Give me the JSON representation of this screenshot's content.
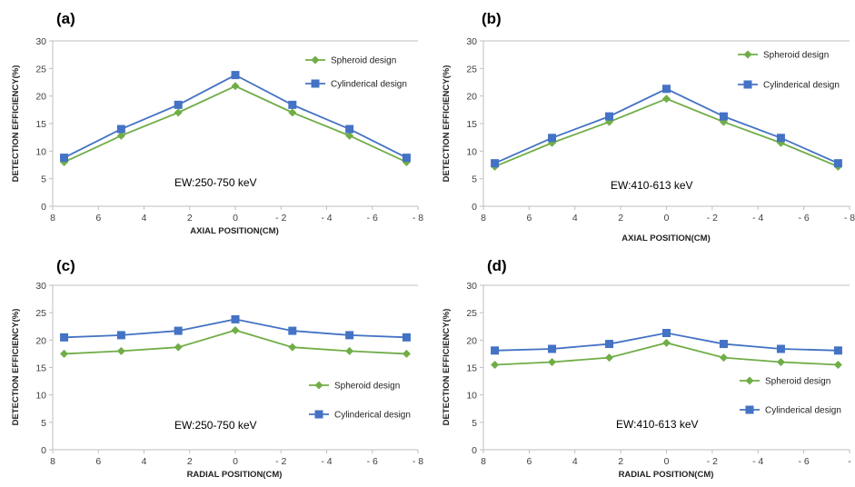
{
  "chart_data": [
    {
      "panel": "(a)",
      "type": "line",
      "xlabel": "AXIAL POSITION(CM)",
      "ylabel": "DETECTION EFFICIENCY(%)",
      "annotation": "EW:250-750 keV",
      "xlim": [
        8,
        -8
      ],
      "ylim": [
        0,
        30
      ],
      "x_ticks": [
        "8",
        "6",
        "4",
        "2",
        "0",
        "- 2",
        "- 4",
        "- 6",
        "- 8"
      ],
      "y_ticks": [
        "0",
        "5",
        "10",
        "15",
        "20",
        "25",
        "30"
      ],
      "legend_position": "top-right",
      "x": [
        7.5,
        5,
        2.5,
        0,
        -2.5,
        -5,
        -7.5
      ],
      "series": [
        {
          "name": "Spheroid design",
          "color": "#70ad47",
          "marker": "diamond",
          "values": [
            8.0,
            12.8,
            17.0,
            21.8,
            17.0,
            12.8,
            8.0
          ]
        },
        {
          "name": "Cylinderical design",
          "color": "#4472c4",
          "marker": "square",
          "values": [
            8.8,
            14.0,
            18.4,
            23.8,
            18.4,
            14.0,
            8.8
          ]
        }
      ]
    },
    {
      "panel": "(b)",
      "type": "line",
      "xlabel": "AXIAL POSITION(CM)",
      "ylabel": "DETECTION EFFICIENCY(%)",
      "annotation": "EW:410-613 keV",
      "xlim": [
        8,
        -8
      ],
      "ylim": [
        0,
        30
      ],
      "x_ticks": [
        "8",
        "6",
        "4",
        "2",
        "0",
        "- 2",
        "- 4",
        "- 6",
        "- 8"
      ],
      "y_ticks": [
        "0",
        "5",
        "10",
        "15",
        "20",
        "25",
        "30"
      ],
      "legend_position": "top-right",
      "x": [
        7.5,
        5,
        2.5,
        0,
        -2.5,
        -5,
        -7.5
      ],
      "series": [
        {
          "name": "Spheroid design",
          "color": "#70ad47",
          "marker": "diamond",
          "values": [
            7.2,
            11.5,
            15.3,
            19.5,
            15.3,
            11.5,
            7.2
          ]
        },
        {
          "name": "Cylinderical design",
          "color": "#4472c4",
          "marker": "square",
          "values": [
            7.8,
            12.4,
            16.3,
            21.3,
            16.3,
            12.4,
            7.8
          ]
        }
      ]
    },
    {
      "panel": "(c)",
      "type": "line",
      "xlabel": "RADIAL POSITION(CM)",
      "ylabel": "DETECTION EFFICIENCY(%)",
      "annotation": "EW:250-750 keV",
      "xlim": [
        8,
        -8
      ],
      "ylim": [
        0,
        30
      ],
      "x_ticks": [
        "8",
        "6",
        "4",
        "2",
        "0",
        "- 2",
        "- 4",
        "- 6",
        "- 8"
      ],
      "y_ticks": [
        "0",
        "5",
        "10",
        "15",
        "20",
        "25",
        "30"
      ],
      "legend_position": "center-right",
      "x": [
        7.5,
        5,
        2.5,
        0,
        -2.5,
        -5,
        -7.5
      ],
      "series": [
        {
          "name": "Spheroid design",
          "color": "#70ad47",
          "marker": "diamond",
          "values": [
            17.5,
            18.0,
            18.7,
            21.8,
            18.7,
            18.0,
            17.5
          ]
        },
        {
          "name": "Cylinderical design",
          "color": "#4472c4",
          "marker": "square",
          "values": [
            20.5,
            20.9,
            21.7,
            23.8,
            21.7,
            20.9,
            20.5
          ]
        }
      ]
    },
    {
      "panel": "(d)",
      "type": "line",
      "xlabel": "RADIAL POSITION(CM)",
      "ylabel": "DETECTION EFFICIENCY(%)",
      "annotation": "EW:410-613 keV",
      "xlim": [
        8,
        -8
      ],
      "ylim": [
        0,
        30
      ],
      "x_ticks": [
        "8",
        "6",
        "4",
        "2",
        "0",
        "- 2",
        "- 4",
        "- 6",
        "-"
      ],
      "y_ticks": [
        "0",
        "5",
        "10",
        "15",
        "20",
        "25",
        "30"
      ],
      "legend_position": "center-right",
      "x": [
        7.5,
        5,
        2.5,
        0,
        -2.5,
        -5,
        -7.5
      ],
      "series": [
        {
          "name": "Spheroid design",
          "color": "#70ad47",
          "marker": "diamond",
          "values": [
            15.5,
            16.0,
            16.8,
            19.5,
            16.8,
            16.0,
            15.5
          ]
        },
        {
          "name": "Cylinderical design",
          "color": "#4472c4",
          "marker": "square",
          "values": [
            18.1,
            18.4,
            19.3,
            21.3,
            19.3,
            18.4,
            18.1
          ]
        }
      ]
    }
  ]
}
